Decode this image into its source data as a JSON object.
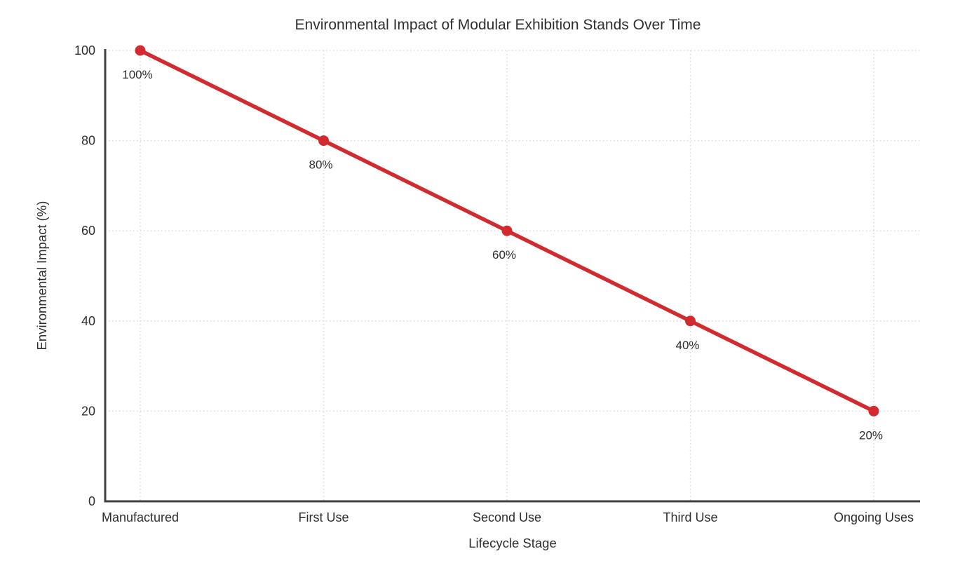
{
  "chart_data": {
    "type": "line",
    "title": "Environmental Impact of Modular Exhibition Stands Over Time",
    "xlabel": "Lifecycle Stage",
    "ylabel": "Environmental Impact (%)",
    "categories": [
      "Manufactured",
      "First Use",
      "Second Use",
      "Third Use",
      "Ongoing Uses"
    ],
    "values": [
      100,
      80,
      60,
      40,
      20
    ],
    "point_labels": [
      "100%",
      "80%",
      "60%",
      "40%",
      "20%"
    ],
    "ylim": [
      0,
      100
    ],
    "yticks": [
      0,
      20,
      40,
      60,
      80,
      100
    ],
    "grid": true,
    "legend_position": "none",
    "colors": {
      "line": "#d22a2e",
      "point": "#d22a2e",
      "grid": "#d9d9d9",
      "axis": "#404040",
      "text": "#2e2e2e",
      "background": "#ffffff"
    }
  }
}
